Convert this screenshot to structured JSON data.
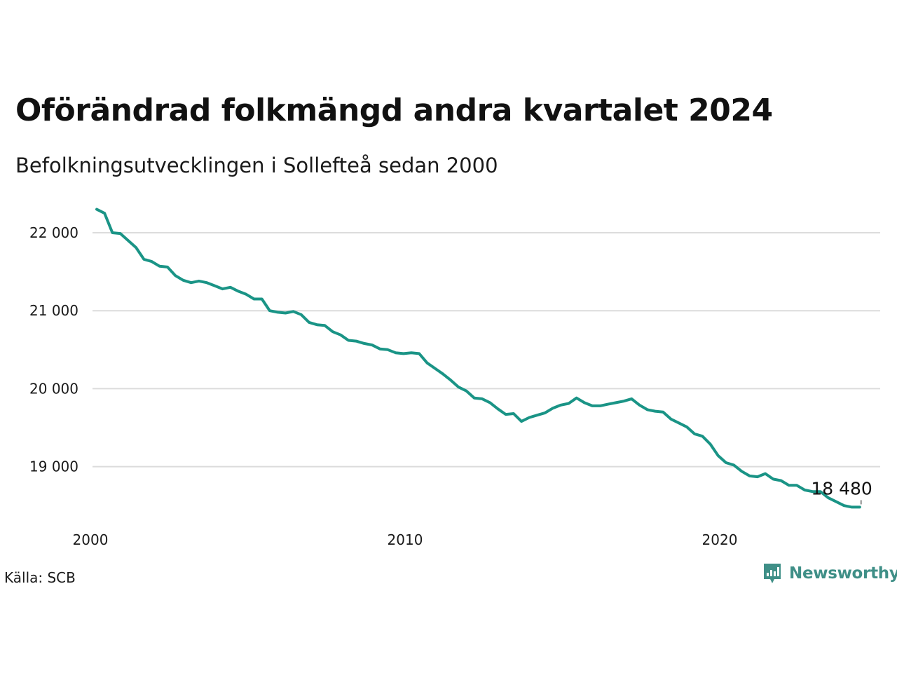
{
  "header": {
    "title": "Oförändrad folkmängd andra kvartalet 2024",
    "subtitle": "Befolkningsutvecklingen i Sollefteå sedan 2000"
  },
  "footer": {
    "source": "Källa: SCB",
    "brand": "Newsworthy",
    "brand_icon": "newsworthy-logo-icon"
  },
  "colors": {
    "line": "#1a9486",
    "grid": "#dcdcdc",
    "brand": "#3f8f87"
  },
  "chart_data": {
    "type": "line",
    "title": "Oförändrad folkmängd andra kvartalet 2024",
    "subtitle": "Befolkningsutvecklingen i Sollefteå sedan 2000",
    "xlabel": "",
    "ylabel": "",
    "xlim": [
      2000,
      2024.8
    ],
    "ylim": [
      18350,
      22400
    ],
    "xticks": [
      2000,
      2010,
      2020
    ],
    "xtick_labels": [
      "2000",
      "2010",
      "2020"
    ],
    "yticks": [
      19000,
      20000,
      21000,
      22000
    ],
    "ytick_labels": [
      "19 000",
      "20 000",
      "21 000",
      "22 000"
    ],
    "grid": true,
    "legend": "none",
    "end_label": "18 480",
    "series": [
      {
        "x": [
          2000.0,
          2000.25,
          2000.5,
          2000.75,
          2001.0,
          2001.25,
          2001.5,
          2001.75,
          2002.0,
          2002.25,
          2002.5,
          2002.75,
          2003.0,
          2003.25,
          2003.5,
          2003.75,
          2004.0,
          2004.25,
          2004.5,
          2004.75,
          2005.0,
          2005.25,
          2005.5,
          2005.75,
          2006.0,
          2006.25,
          2006.5,
          2006.75,
          2007.0,
          2007.25,
          2007.5,
          2007.75,
          2008.0,
          2008.25,
          2008.5,
          2008.75,
          2009.0,
          2009.25,
          2009.5,
          2009.75,
          2010.0,
          2010.25,
          2010.5,
          2010.75,
          2011.0,
          2011.25,
          2011.5,
          2011.75,
          2012.0,
          2012.25,
          2012.5,
          2012.75,
          2013.0,
          2013.25,
          2013.5,
          2013.75,
          2014.0,
          2014.25,
          2014.5,
          2014.75,
          2015.0,
          2015.25,
          2015.5,
          2015.75,
          2016.0,
          2016.25,
          2016.5,
          2016.75,
          2017.0,
          2017.25,
          2017.5,
          2017.75,
          2018.0,
          2018.25,
          2018.5,
          2018.75,
          2019.0,
          2019.25,
          2019.5,
          2019.75,
          2020.0,
          2020.25,
          2020.5,
          2020.75,
          2021.0,
          2021.25,
          2021.5,
          2021.75,
          2022.0,
          2022.25,
          2022.5,
          2022.75,
          2023.0,
          2023.25,
          2023.5,
          2023.75,
          2024.0,
          2024.25
        ],
        "values": [
          22300,
          22250,
          22000,
          21990,
          21900,
          21810,
          21660,
          21630,
          21570,
          21560,
          21450,
          21390,
          21360,
          21380,
          21360,
          21320,
          21280,
          21300,
          21250,
          21210,
          21150,
          21150,
          21000,
          20980,
          20970,
          20990,
          20950,
          20850,
          20820,
          20810,
          20730,
          20690,
          20620,
          20610,
          20580,
          20560,
          20510,
          20500,
          20460,
          20450,
          20460,
          20450,
          20330,
          20260,
          20190,
          20110,
          20020,
          19970,
          19880,
          19870,
          19820,
          19740,
          19670,
          19680,
          19580,
          19630,
          19660,
          19690,
          19750,
          19790,
          19810,
          19880,
          19820,
          19780,
          19780,
          19800,
          19820,
          19840,
          19870,
          19790,
          19730,
          19710,
          19700,
          19610,
          19560,
          19510,
          19420,
          19390,
          19290,
          19140,
          19050,
          19020,
          18940,
          18880,
          18870,
          18910,
          18840,
          18820,
          18760,
          18760,
          18700,
          18680,
          18680,
          18600,
          18550,
          18500,
          18480,
          18480
        ]
      }
    ]
  }
}
